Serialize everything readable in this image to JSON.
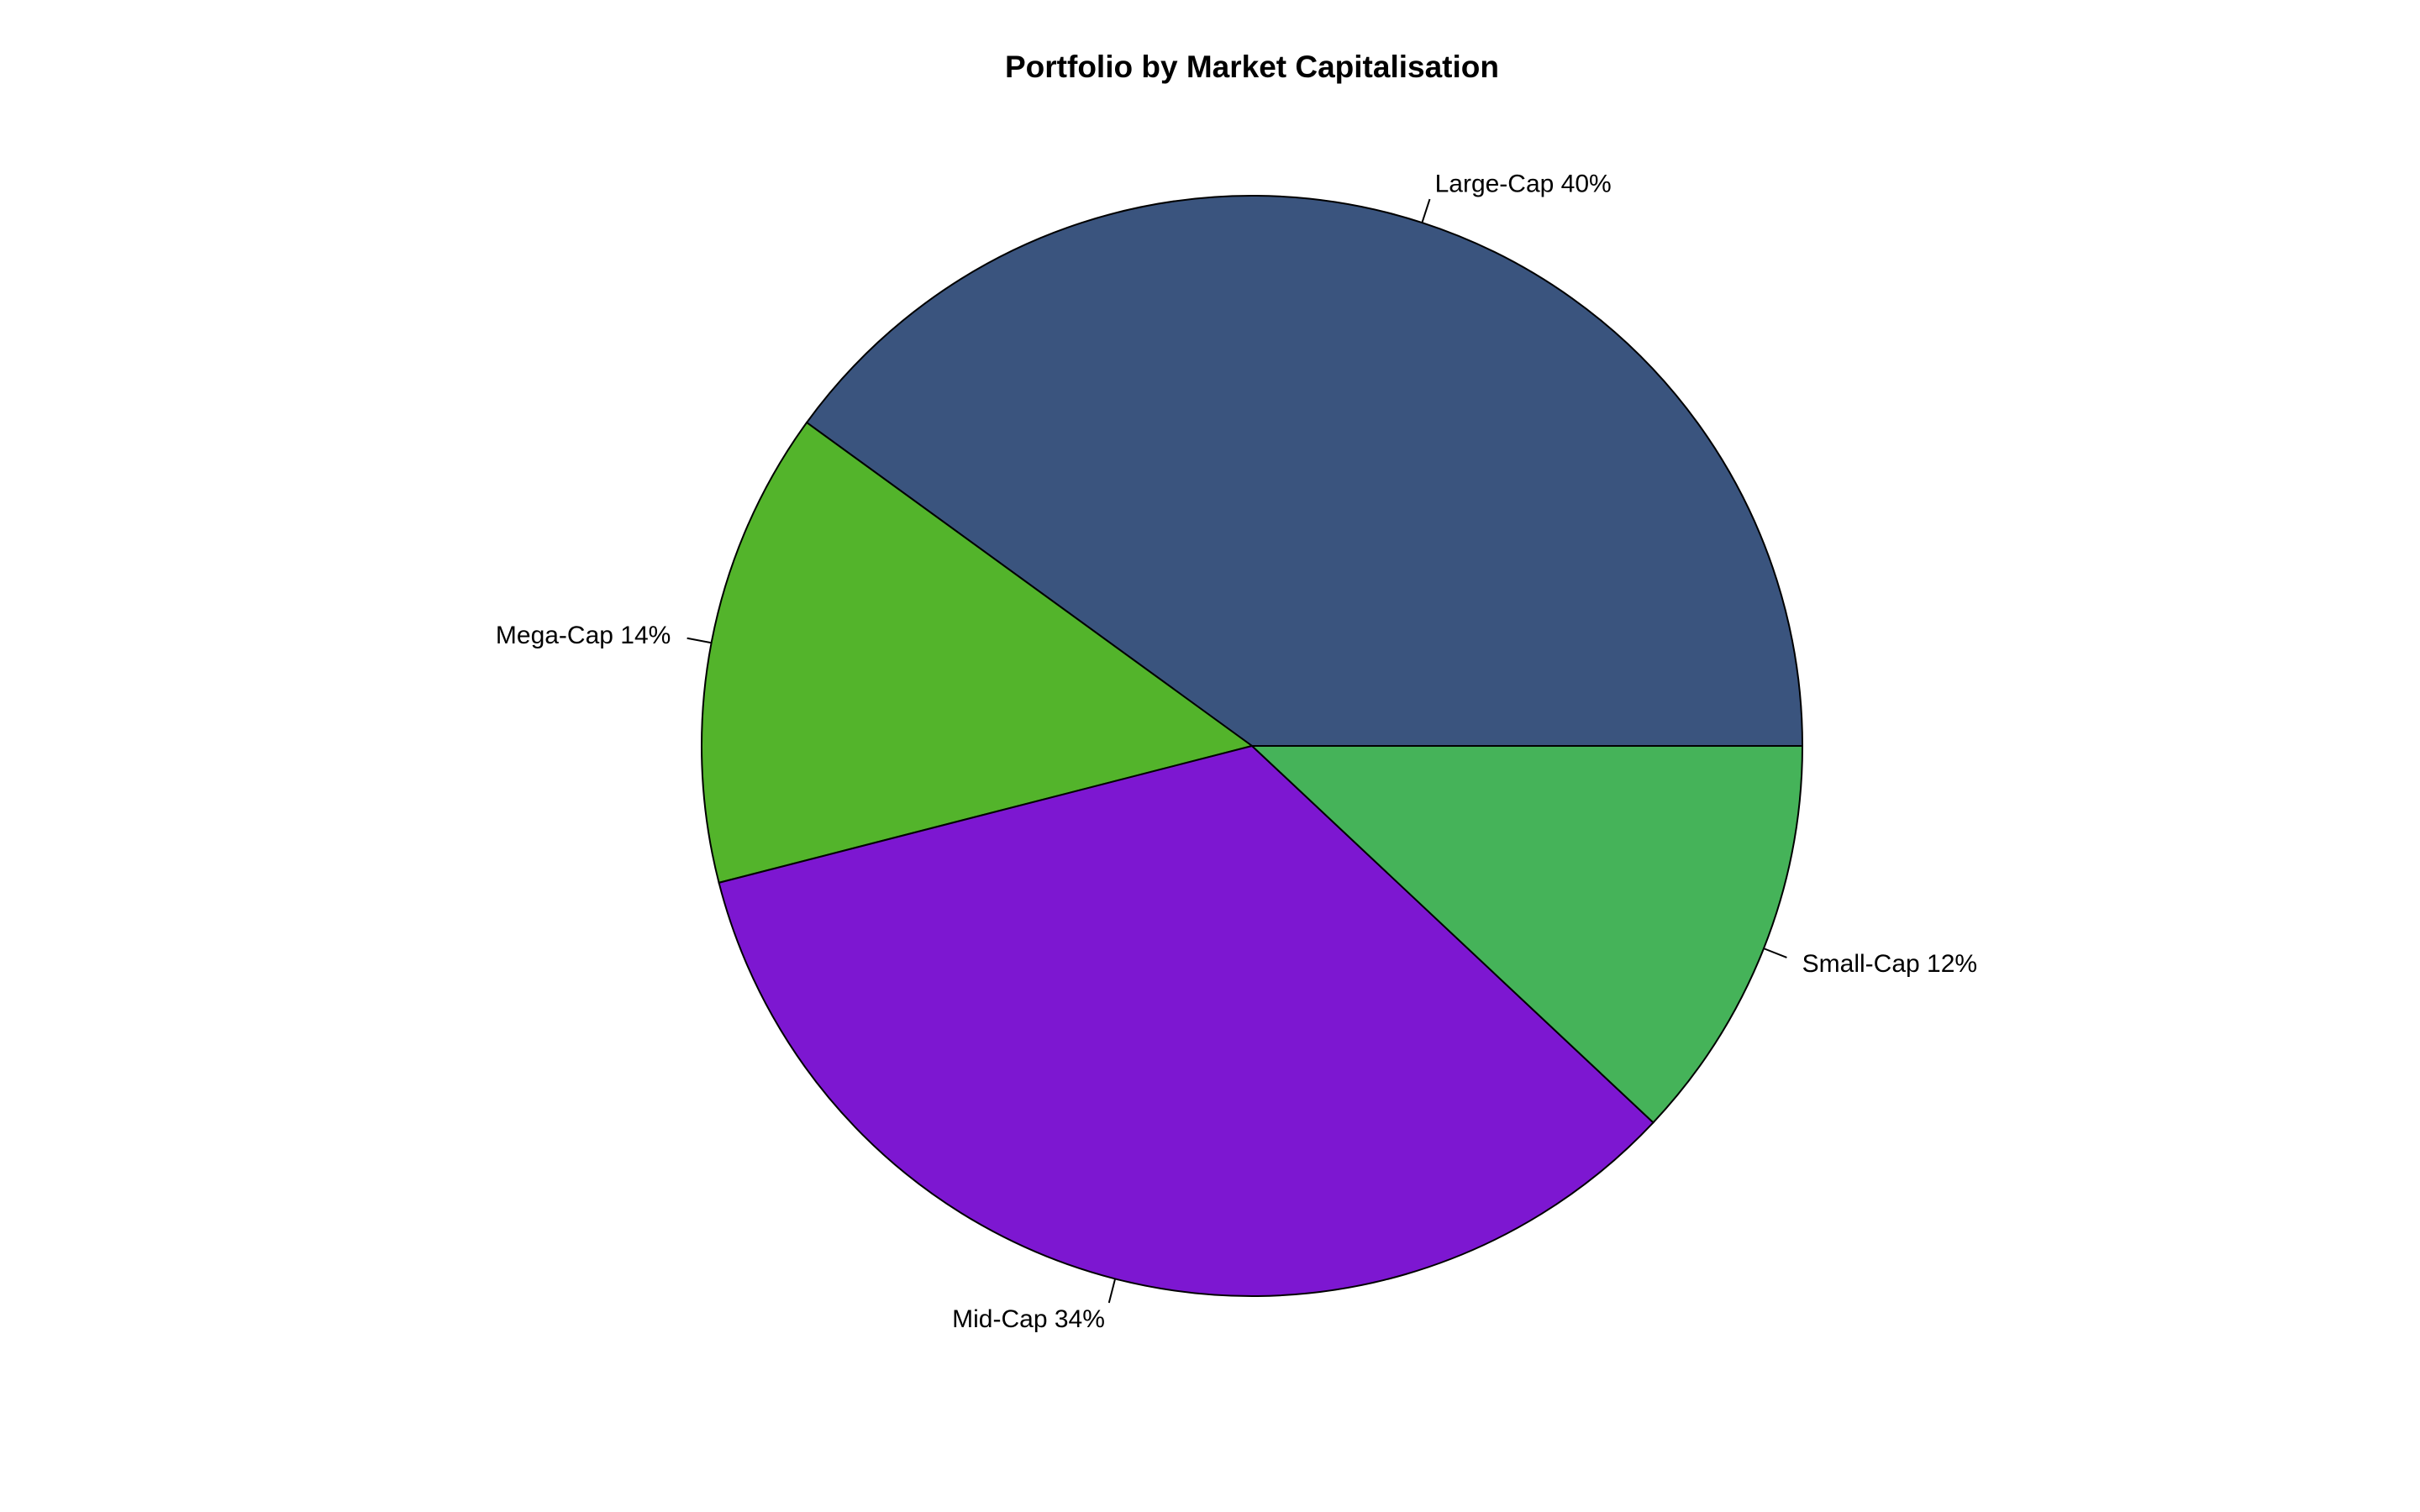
{
  "chart_data": {
    "type": "pie",
    "title": "Portfolio by Market Capitalisation",
    "slices": [
      {
        "label": "Large-Cap",
        "value": 40,
        "color": "#3a547e"
      },
      {
        "label": "Mega-Cap",
        "value": 14,
        "color": "#53b42b"
      },
      {
        "label": "Mid-Cap",
        "value": 34,
        "color": "#7d17d1"
      },
      {
        "label": "Small-Cap",
        "value": 12,
        "color": "#45b359"
      }
    ],
    "start_angle_deg": 0,
    "direction": "counterclockwise",
    "legend": "none",
    "label_format": "{label} {value}%"
  }
}
